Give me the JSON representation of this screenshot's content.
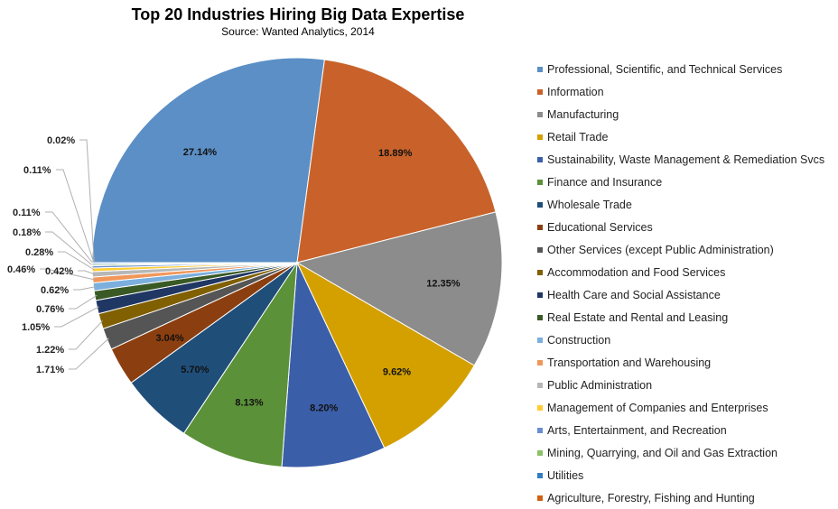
{
  "chart_data": {
    "type": "pie",
    "title": "Top 20 Industries Hiring Big Data Expertise",
    "subtitle": "Source: Wanted Analytics, 2014",
    "legend_position": "right",
    "categories": [
      "Professional, Scientific, and Technical Services",
      "Information",
      "Manufacturing",
      "Retail Trade",
      "Sustainability, Waste Management & Remediation Svcs",
      "Finance and Insurance",
      "Wholesale Trade",
      "Educational Services",
      "Other Services (except Public Administration)",
      "Accommodation and Food Services",
      "Health Care and Social Assistance",
      "Real Estate and Rental and Leasing",
      "Construction",
      "Transportation and Warehousing",
      "Public Administration",
      "Management of Companies and Enterprises",
      "Arts, Entertainment, and Recreation",
      "Mining, Quarrying, and Oil and Gas Extraction",
      "Utilities",
      "Agriculture, Forestry, Fishing and Hunting"
    ],
    "values": [
      27.14,
      18.89,
      12.35,
      9.62,
      8.2,
      8.13,
      5.7,
      3.04,
      1.71,
      1.22,
      1.05,
      0.76,
      0.62,
      0.46,
      0.42,
      0.28,
      0.18,
      0.11,
      0.11,
      0.02
    ],
    "labels": [
      "27.14%",
      "18.89%",
      "12.35%",
      "9.62%",
      "8.20%",
      "8.13%",
      "5.70%",
      "3.04%",
      "1.71%",
      "1.22%",
      "1.05%",
      "0.76%",
      "0.62%",
      "0.46%",
      "0.42%",
      "0.28%",
      "0.18%",
      "0.11%",
      "0.11%",
      "0.02%"
    ],
    "colors": [
      "#5b8fc6",
      "#c8622a",
      "#8c8c8c",
      "#d4a000",
      "#3b5ea8",
      "#5b9139",
      "#1f4e79",
      "#8b3f10",
      "#555555",
      "#806000",
      "#203764",
      "#3a5a25",
      "#7cafdd",
      "#f1975a",
      "#b7b7b7",
      "#ffcd33",
      "#698ed0",
      "#8cc168",
      "#327dc2",
      "#d26012"
    ]
  }
}
